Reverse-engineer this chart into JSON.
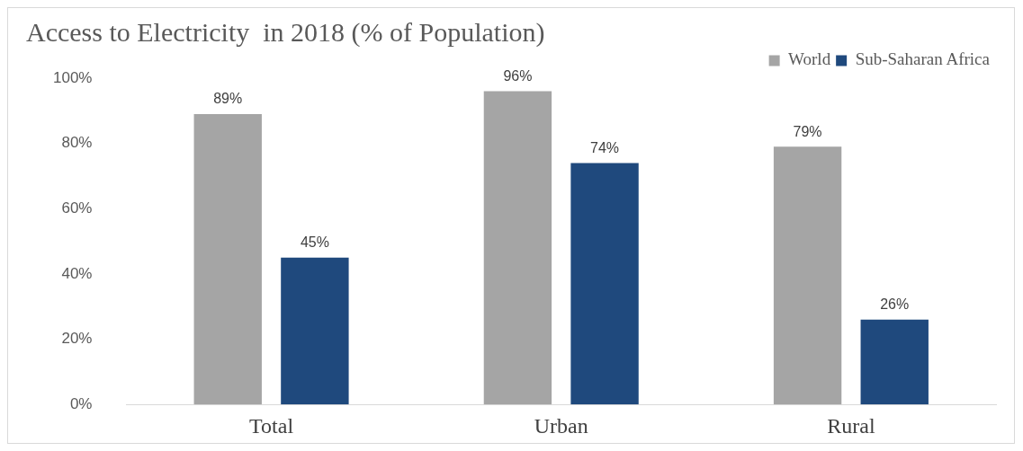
{
  "chart_data": {
    "type": "bar",
    "title": "Access to Electricity  in 2018 (% of Population)",
    "categories": [
      "Total",
      "Urban",
      "Rural"
    ],
    "series": [
      {
        "name": "World",
        "color": "#a5a5a5",
        "values": [
          89,
          96,
          79
        ],
        "value_labels": [
          "89%",
          "96%",
          "79%"
        ]
      },
      {
        "name": "Sub-Saharan Africa",
        "color": "#1f497d",
        "values": [
          45,
          74,
          26
        ],
        "value_labels": [
          "45%",
          "74%",
          "26%"
        ]
      }
    ],
    "ylim": [
      0,
      100
    ],
    "yticks": [
      {
        "value": 0,
        "label": "0%"
      },
      {
        "value": 20,
        "label": "20%"
      },
      {
        "value": 40,
        "label": "40%"
      },
      {
        "value": 60,
        "label": "60%"
      },
      {
        "value": 80,
        "label": "80%"
      },
      {
        "value": 100,
        "label": "100%"
      }
    ],
    "grid": false,
    "legend": "top right"
  }
}
